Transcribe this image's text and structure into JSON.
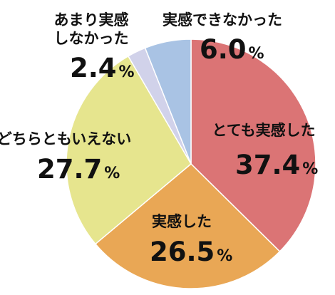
{
  "chart_data": {
    "type": "pie",
    "start": "top",
    "direction": "clockwise",
    "slices": [
      {
        "label": "とても実感した",
        "value": 37.4,
        "display": "37.4",
        "unit": "%",
        "color": "#DB7475"
      },
      {
        "label": "実感した",
        "value": 26.5,
        "display": "26.5",
        "unit": "%",
        "color": "#E9A755"
      },
      {
        "label": "どちらともいえない",
        "value": 27.7,
        "display": "27.7",
        "unit": "%",
        "color": "#E6E58E"
      },
      {
        "label": "あまり実感\nしなかった",
        "value": 2.4,
        "display": "2.4",
        "unit": "%",
        "color": "#D1D2EA"
      },
      {
        "label": "実感できなかった",
        "value": 6.0,
        "display": "6.0",
        "unit": "%",
        "color": "#A9C3E4"
      }
    ]
  }
}
